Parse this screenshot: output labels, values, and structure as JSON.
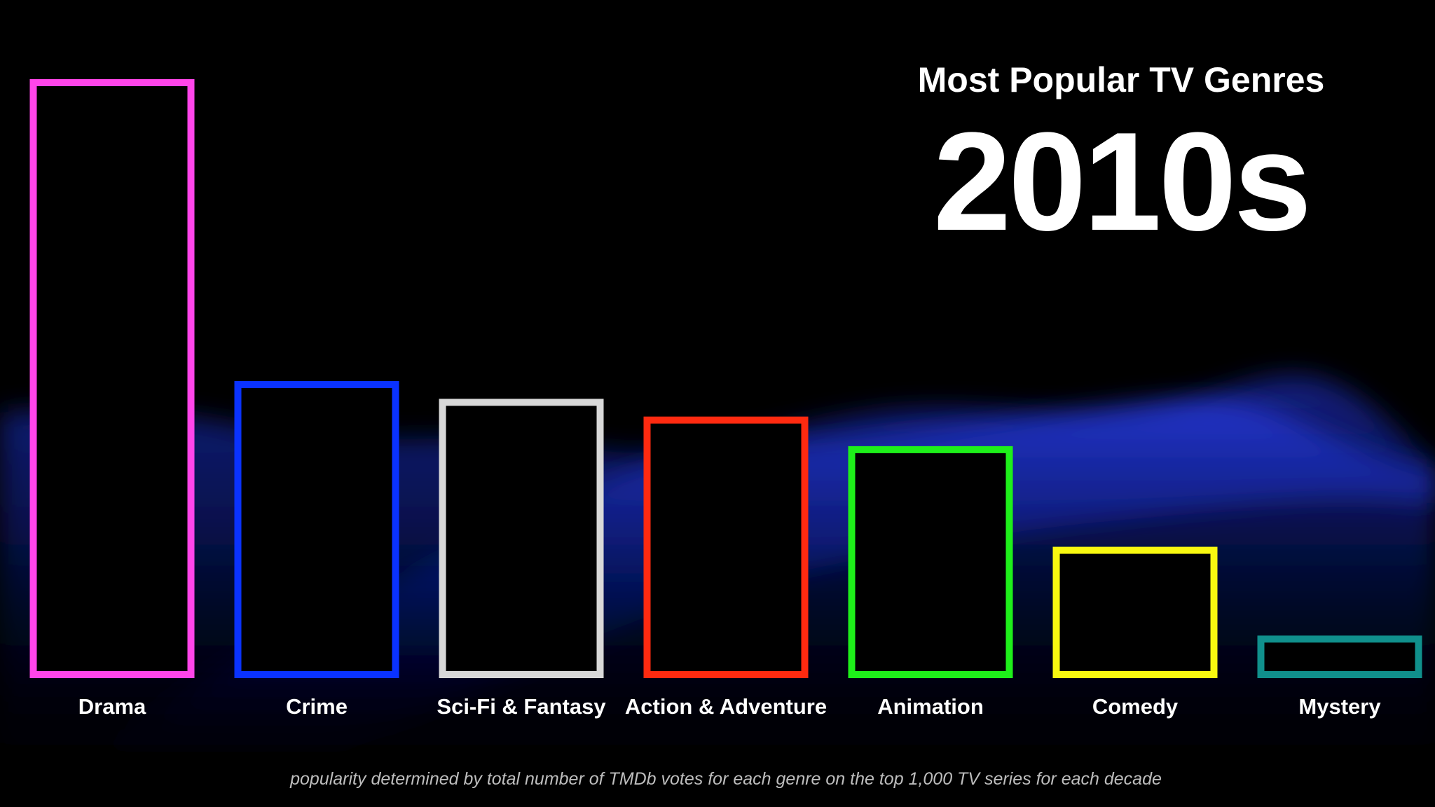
{
  "chart_data": {
    "type": "bar",
    "title": "Most Popular TV Genres",
    "subtitle": "2010s",
    "categories": [
      "Drama",
      "Crime",
      "Sci-Fi & Fantasy",
      "Action & Adventure",
      "Animation",
      "Comedy",
      "Mystery"
    ],
    "values": [
      100,
      49,
      46,
      43,
      38,
      21,
      6
    ],
    "colors": [
      "#ff45ea",
      "#0a32ff",
      "#d8d8d8",
      "#ff2a10",
      "#1ef01a",
      "#f8f810",
      "#10908c"
    ],
    "bar_style": "outline",
    "ylim": [
      0,
      100
    ],
    "grid": false,
    "legend": "none",
    "xlabel": "",
    "ylabel": "",
    "footnote": "popularity determined by total number of TMDb votes for each genre on the top 1,000 TV series for each decade"
  },
  "theme": {
    "background": "#000000",
    "wave_color": "#1a2fd6",
    "text_color": "#ffffff"
  }
}
